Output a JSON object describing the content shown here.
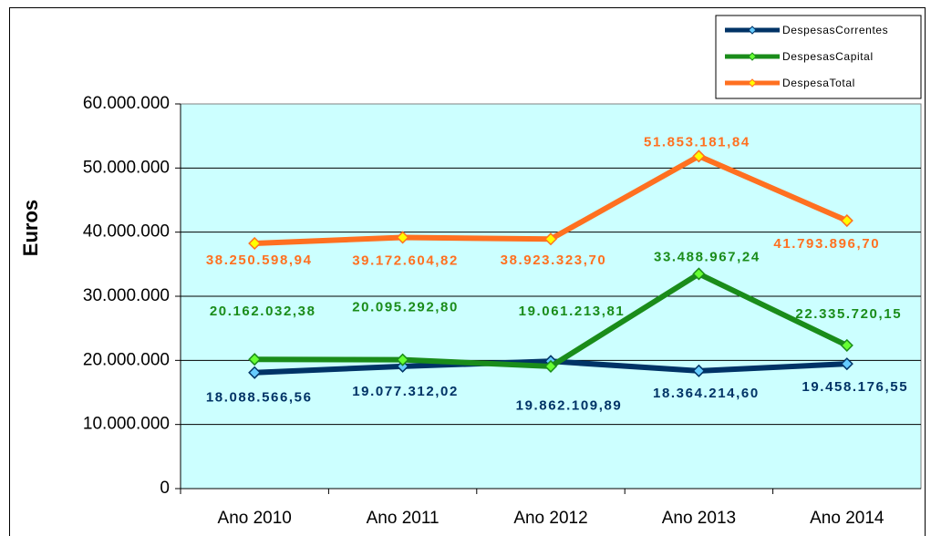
{
  "chart_data": {
    "type": "line",
    "y_label": "Euros",
    "categories": [
      "Ano 2010",
      "Ano 2011",
      "Ano 2012",
      "Ano 2013",
      "Ano 2014"
    ],
    "series": [
      {
        "name": "DespesasCorrentes",
        "color": "#003366",
        "marker_color": "#66ccff",
        "values": [
          18088566.56,
          19077312.02,
          19862109.89,
          18364214.6,
          19458176.55
        ],
        "value_labels": [
          "18.088.566,56",
          "19.077.312,02",
          "19.862.109,89",
          "18.364.214,60",
          "19.458.176,55"
        ]
      },
      {
        "name": "DespesasCapital",
        "color": "#1a8c1a",
        "marker_color": "#66ff33",
        "values": [
          20162032.38,
          20095292.8,
          19061213.81,
          33488967.24,
          22335720.15
        ],
        "value_labels": [
          "20.162.032,38",
          "20.095.292,80",
          "19.061.213,81",
          "33.488.967,24",
          "22.335.720,15"
        ]
      },
      {
        "name": "DespesaTotal",
        "color": "#ff7020",
        "marker_color": "#ffff00",
        "values": [
          38250598.94,
          39172604.82,
          38923323.7,
          51853181.84,
          41793896.7
        ],
        "value_labels": [
          "38.250.598,94",
          "39.172.604,82",
          "38.923.323,70",
          "51.853.181,84",
          "41.793.896,70"
        ]
      }
    ],
    "ylim": [
      0,
      60000000
    ],
    "yticks": [
      0,
      {
        "value": 10000000,
        "label": "10.000.000"
      },
      {
        "value": 20000000,
        "label": "20.000.000"
      },
      {
        "value": 30000000,
        "label": "30.000.000"
      },
      {
        "value": 40000000,
        "label": "40.000.000"
      },
      {
        "value": 50000000,
        "label": "50.000.000"
      },
      {
        "value": 60000000,
        "label": "60.000.000"
      }
    ],
    "grid": true,
    "legend": "top-right",
    "plot_background": "#ccffff"
  }
}
